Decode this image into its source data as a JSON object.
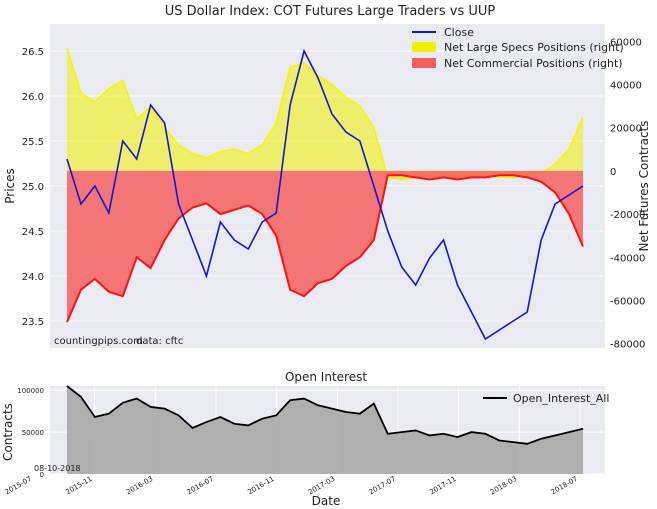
{
  "chart_data": [
    {
      "type": "line",
      "title": "US Dollar Index: COT Futures Large Traders vs UUP",
      "ylabel": "Prices",
      "y2label": "Net Futures Contracts",
      "ylim": [
        23.2,
        26.8
      ],
      "y_ticks": [
        "23.5",
        "24.0",
        "24.5",
        "25.0",
        "25.5",
        "26.0",
        "26.5"
      ],
      "y2lim": [
        -82000,
        68000
      ],
      "y2_ticks": [
        "-80000",
        "-60000",
        "-40000",
        "-20000",
        "0",
        "20000",
        "40000",
        "60000"
      ],
      "grid": true,
      "legend_position": "top-right",
      "annotations": [
        "countingpips.com",
        "data: cftc"
      ],
      "x": [
        "2015-07",
        "2015-08",
        "2015-09",
        "2015-10",
        "2015-11",
        "2015-12",
        "2016-01",
        "2016-02",
        "2016-03",
        "2016-04",
        "2016-05",
        "2016-06",
        "2016-07",
        "2016-08",
        "2016-09",
        "2016-10",
        "2016-11",
        "2016-12",
        "2017-01",
        "2017-02",
        "2017-03",
        "2017-04",
        "2017-05",
        "2017-06",
        "2017-07",
        "2017-08",
        "2017-09",
        "2017-10",
        "2017-11",
        "2017-12",
        "2018-01",
        "2018-02",
        "2018-03",
        "2018-04",
        "2018-05",
        "2018-06",
        "2018-07",
        "2018-08"
      ],
      "series": [
        {
          "name": "Close",
          "axis": "left",
          "color": "#1515d0",
          "values": [
            25.3,
            24.8,
            25.0,
            24.7,
            25.5,
            25.3,
            25.9,
            25.7,
            24.8,
            24.4,
            24.0,
            24.6,
            24.4,
            24.3,
            24.6,
            24.7,
            25.9,
            26.5,
            26.2,
            25.8,
            25.6,
            25.5,
            25.0,
            24.5,
            24.1,
            23.9,
            24.2,
            24.4,
            23.9,
            23.6,
            23.3,
            23.4,
            23.5,
            23.6,
            24.4,
            24.8,
            24.9,
            25.0
          ]
        },
        {
          "name": "Net Large Specs Positions (right)",
          "axis": "right",
          "color": "#f0f000",
          "values": [
            57000,
            36000,
            32000,
            38000,
            42000,
            24000,
            30000,
            20000,
            12000,
            8000,
            6000,
            9000,
            10000,
            8000,
            12000,
            22000,
            48000,
            50000,
            44000,
            40000,
            34000,
            30000,
            20000,
            -3000,
            -4000,
            -3000,
            -2000,
            -3000,
            -3000,
            -2000,
            -2000,
            -3000,
            -3000,
            -2000,
            -1000,
            3000,
            10000,
            25000
          ]
        },
        {
          "name": "Net Commercial Positions (right)",
          "axis": "right",
          "color": "#f46060",
          "values": [
            -70000,
            -55000,
            -50000,
            -56000,
            -58000,
            -40000,
            -45000,
            -32000,
            -22000,
            -17000,
            -15000,
            -20000,
            -18000,
            -16000,
            -20000,
            -30000,
            -55000,
            -58000,
            -52000,
            -50000,
            -44000,
            -40000,
            -32000,
            -2000,
            -2000,
            -3000,
            -4000,
            -3000,
            -4000,
            -3000,
            -3000,
            -2000,
            -2000,
            -3000,
            -5000,
            -10000,
            -20000,
            -35000
          ]
        }
      ]
    },
    {
      "type": "area",
      "title": "Open Interest",
      "xlabel": "Date",
      "ylabel": "Contracts",
      "ylim": [
        0,
        105000
      ],
      "y_ticks": [
        "0",
        "50000",
        "100000"
      ],
      "x_ticks": [
        "2015-07",
        "2015-11",
        "2016-03",
        "2016-07",
        "2016-11",
        "2017-03",
        "2017-07",
        "2017-11",
        "2018-03",
        "2018-07"
      ],
      "legend_position": "top-right",
      "annotations": [
        "08-10-2018"
      ],
      "series": [
        {
          "name": "Open_Interest_All",
          "color": "#000000",
          "values": [
            105000,
            92000,
            68000,
            72000,
            85000,
            90000,
            80000,
            78000,
            70000,
            55000,
            62000,
            68000,
            60000,
            58000,
            66000,
            70000,
            88000,
            90000,
            82000,
            78000,
            74000,
            72000,
            84000,
            48000,
            50000,
            52000,
            46000,
            48000,
            44000,
            50000,
            48000,
            40000,
            38000,
            36000,
            42000,
            46000,
            50000,
            54000
          ]
        }
      ]
    }
  ]
}
